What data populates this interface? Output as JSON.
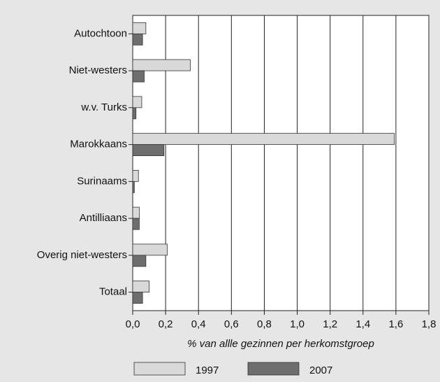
{
  "chart_data": {
    "type": "hbar",
    "categories": [
      "Autochtoon",
      "Niet-westers",
      "w.v. Turks",
      "Marokkaans",
      "Surinaams",
      "Antilliaans",
      "Overig niet-westers",
      "Totaal"
    ],
    "series": [
      {
        "name": "1997",
        "color": "#d9d9d9",
        "values": [
          0.08,
          0.35,
          0.055,
          1.59,
          0.035,
          0.04,
          0.21,
          0.1
        ]
      },
      {
        "name": "2007",
        "color": "#6e6e6e",
        "values": [
          0.06,
          0.07,
          0.02,
          0.19,
          0.01,
          0.04,
          0.08,
          0.06
        ]
      }
    ],
    "xlabel": "% van allle gezinnen per herkomstgroep",
    "xlim": [
      0,
      1.8
    ],
    "xticks": [
      {
        "value": 0,
        "label": "0,0"
      },
      {
        "value": 0.2,
        "label": "0,2"
      },
      {
        "value": 0.4,
        "label": "0,4"
      },
      {
        "value": 0.6,
        "label": "0,6"
      },
      {
        "value": 0.8,
        "label": "0,8"
      },
      {
        "value": 1.0,
        "label": "1,0"
      },
      {
        "value": 1.2,
        "label": "1,2"
      },
      {
        "value": 1.4,
        "label": "1,4"
      },
      {
        "value": 1.6,
        "label": "1,6"
      },
      {
        "value": 1.8,
        "label": "1,8"
      }
    ],
    "grid": true
  }
}
